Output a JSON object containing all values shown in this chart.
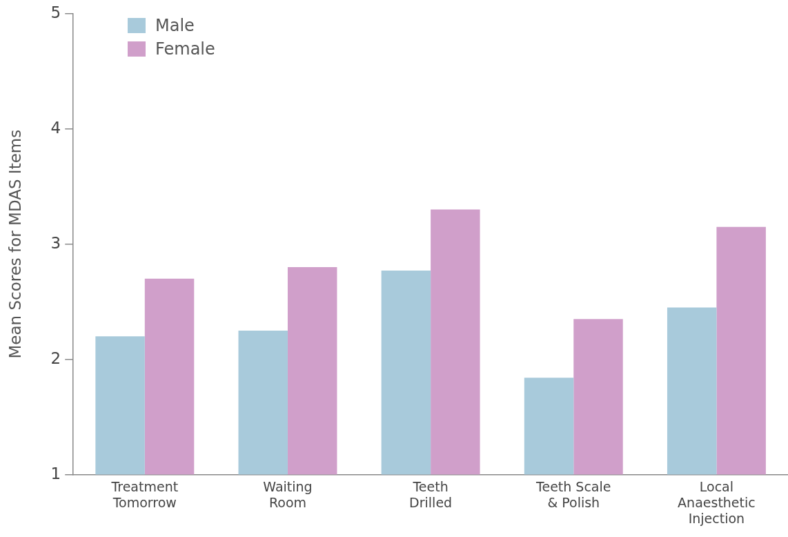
{
  "chart_data": {
    "type": "bar",
    "ylabel": "Mean Scores for MDAS Items",
    "categories": [
      "Treatment\nTomorrow",
      "Waiting\nRoom",
      "Teeth\nDrilled",
      "Teeth Scale\n& Polish",
      "Local\nAnaesthetic\nInjection"
    ],
    "series": [
      {
        "name": "Male",
        "color": "#a8cadb",
        "values": [
          2.2,
          2.25,
          2.77,
          1.84,
          2.45
        ]
      },
      {
        "name": "Female",
        "color": "#d09fca",
        "values": [
          2.7,
          2.8,
          3.3,
          2.35,
          3.15
        ]
      }
    ],
    "ylim": [
      1,
      5
    ],
    "yticks": [
      1,
      2,
      3,
      4,
      5
    ],
    "grid": false,
    "legend": "top left"
  }
}
